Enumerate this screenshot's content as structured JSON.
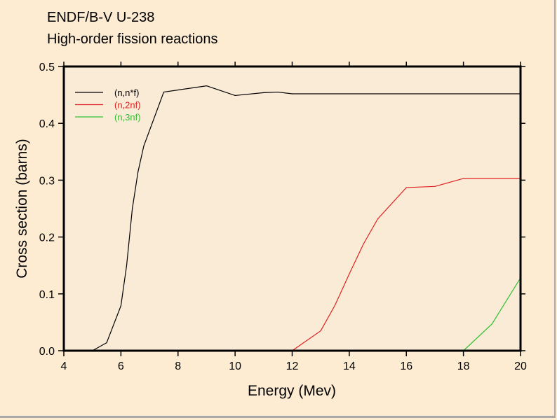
{
  "chart_data": {
    "type": "line",
    "title": "ENDF/B-V U-238",
    "subtitle": "High-order fission reactions",
    "xlabel": "Energy (Mev)",
    "ylabel": "Cross section (barns)",
    "xlim": [
      4,
      20
    ],
    "ylim": [
      0,
      0.5
    ],
    "xticks": [
      "4",
      "6",
      "8",
      "10",
      "12",
      "14",
      "16",
      "18",
      "20"
    ],
    "yticks": [
      "0.0",
      "0.1",
      "0.2",
      "0.3",
      "0.4",
      "0.5"
    ],
    "grid": false,
    "legend_position": "top-left",
    "colors": {
      "plot_background": "#faebd7",
      "page_background": "#fdecd2"
    },
    "series": [
      {
        "name": "(n,n*f)",
        "color": "#000000",
        "x": [
          5,
          5.5,
          6,
          6.2,
          6.4,
          6.6,
          6.8,
          7.5,
          9,
          10,
          11,
          11.5,
          12,
          20
        ],
        "y": [
          0,
          0.014,
          0.079,
          0.15,
          0.25,
          0.315,
          0.36,
          0.455,
          0.466,
          0.449,
          0.454,
          0.455,
          0.452,
          0.452
        ]
      },
      {
        "name": "(n,2nf)",
        "color": "#e02020",
        "x": [
          12,
          13,
          13.5,
          14,
          14.5,
          15,
          16,
          17,
          18,
          20
        ],
        "y": [
          0,
          0.035,
          0.08,
          0.135,
          0.188,
          0.232,
          0.287,
          0.289,
          0.303,
          0.303
        ]
      },
      {
        "name": "(n,3nf)",
        "color": "#30c030",
        "x": [
          18,
          19,
          20
        ],
        "y": [
          0,
          0.047,
          0.128
        ]
      }
    ]
  }
}
